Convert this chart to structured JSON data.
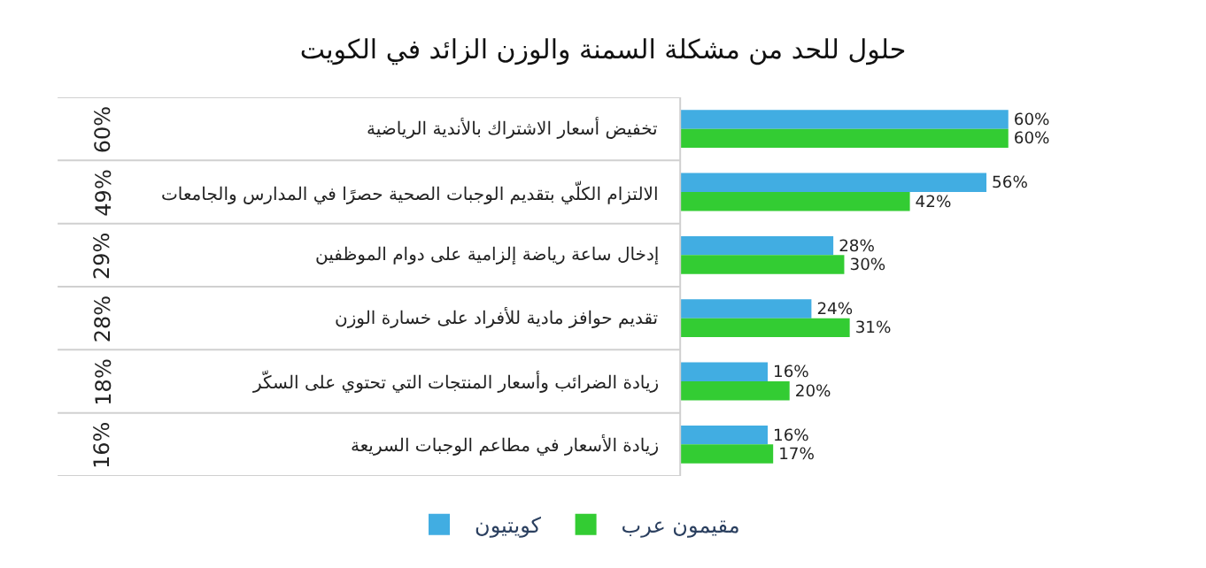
{
  "chart_data": {
    "type": "bar",
    "orientation": "horizontal",
    "title": "حلول للحد من مشكلة السمنة والوزن الزائد في الكويت",
    "categories": [
      "تخفيض أسعار الاشتراك بالأندية الرياضية",
      "الالتزام الكلّي بتقديم الوجبات الصحية حصرًا في المدارس والجامعات",
      "إدخال ساعة رياضة إلزامية على دوام الموظفين",
      "تقديم حوافز مادية للأفراد على خسارة الوزن",
      "زيادة الضرائب وأسعار المنتجات التي تحتوي على السكّر",
      "زيادة الأسعار في مطاعم الوجبات السريعة"
    ],
    "series": [
      {
        "name": "كويتيون",
        "color": "#41ade2",
        "values": [
          60,
          56,
          28,
          24,
          16,
          16
        ],
        "value_labels": [
          "60%",
          "56%",
          "28%",
          "24%",
          "16%",
          "16%"
        ]
      },
      {
        "name": "مقيمون عرب",
        "color": "#33cc33",
        "values": [
          60,
          42,
          30,
          31,
          20,
          17
        ],
        "value_labels": [
          "60%",
          "42%",
          "30%",
          "31%",
          "20%",
          "17%"
        ]
      }
    ],
    "annotations": [
      "60%",
      "49%",
      "29%",
      "28%",
      "18%",
      "16%"
    ],
    "legend": "bottom"
  }
}
